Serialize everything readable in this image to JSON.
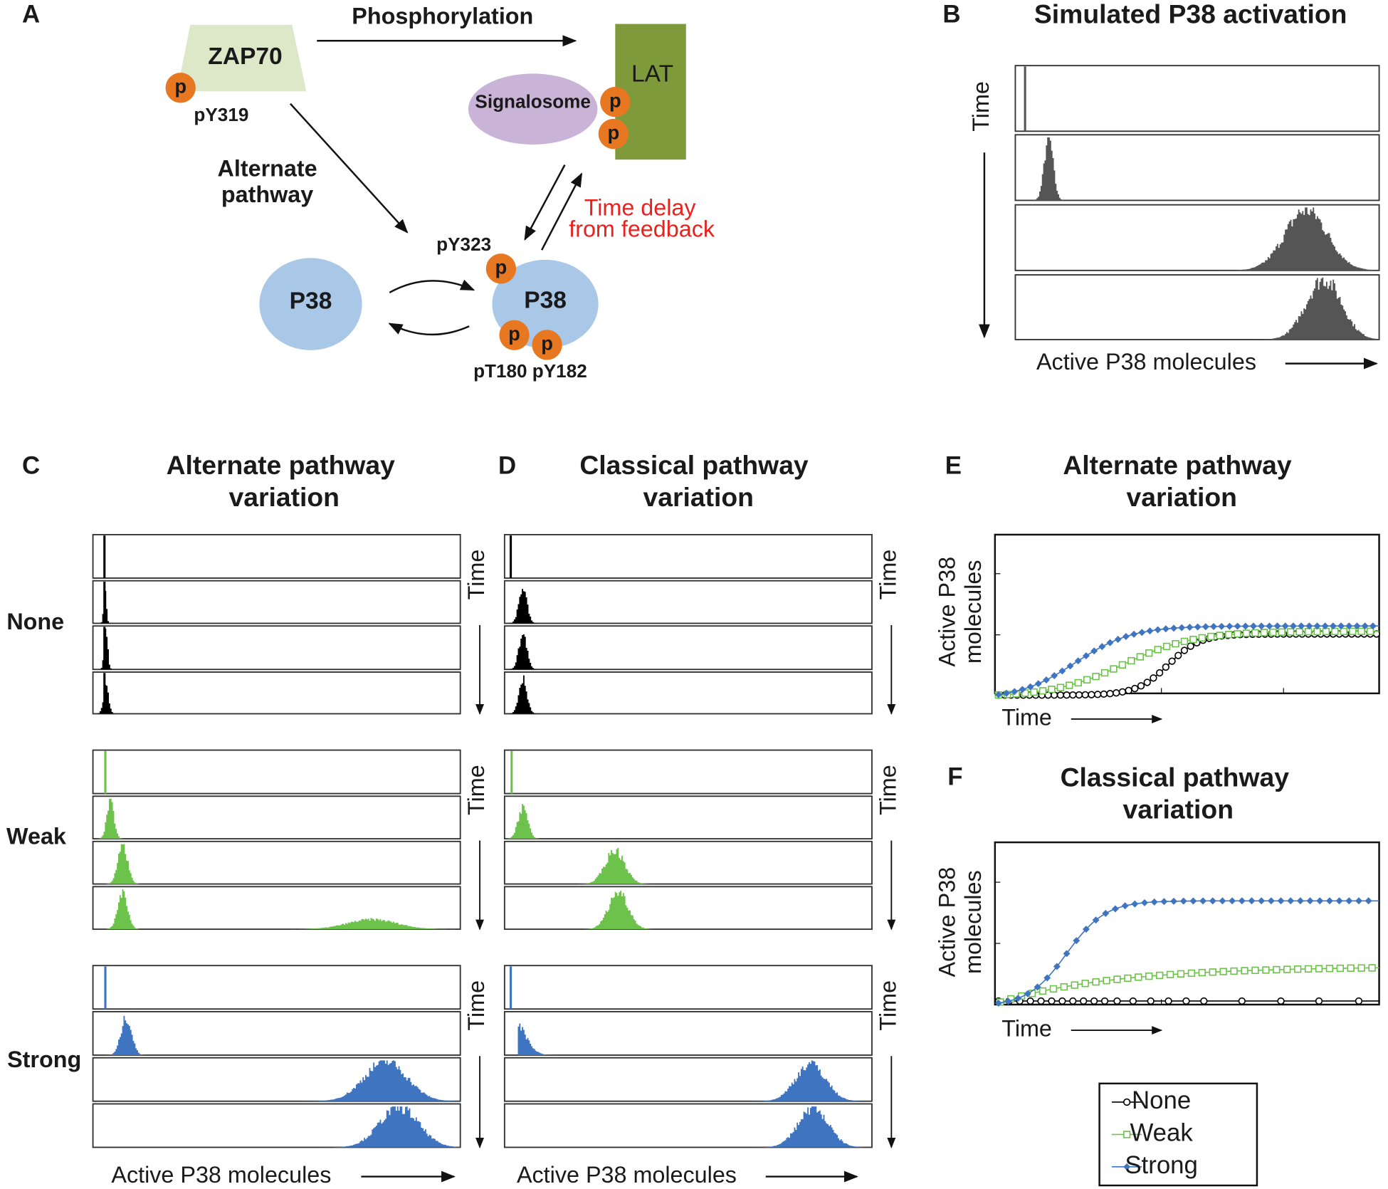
{
  "panel_a": {
    "label": "A",
    "phosphorylation": "Phosphorylation",
    "zap70": "ZAP70",
    "zap_p": "p",
    "py319": "pY319",
    "alternate": [
      "Alternate",
      "pathway"
    ],
    "lat": "LAT",
    "signalosome": "Signalosome",
    "lat_p": [
      "p",
      "p"
    ],
    "time_delay": [
      "Time delay",
      "from feedback"
    ],
    "py323": "pY323",
    "p38_inactive": "P38",
    "p38_active": "P38",
    "p38_p": [
      "p",
      "p",
      "p"
    ],
    "sites": "pT180 pY182"
  },
  "panel_b": {
    "label": "B",
    "title": "Simulated P38 activation",
    "y_label": "Time",
    "x_label": "Active P38 molecules"
  },
  "panel_c": {
    "label": "C",
    "title": [
      "Alternate pathway",
      "variation"
    ],
    "rows": [
      "None",
      "Weak",
      "Strong"
    ],
    "time_labels": [
      "Time",
      "Time",
      "Time"
    ],
    "x_label": "Active P38 molecules"
  },
  "panel_d": {
    "label": "D",
    "title": [
      "Classical pathway",
      "variation"
    ],
    "time_labels": [
      "Time",
      "Time",
      "Time"
    ],
    "x_label": "Active P38 molecules"
  },
  "panel_e": {
    "label": "E",
    "title": [
      "Alternate pathway",
      "variation"
    ],
    "y_label": [
      "Active P38",
      "molecules"
    ],
    "x_label": "Time"
  },
  "panel_f": {
    "label": "F",
    "title": [
      "Classical pathway",
      "variation"
    ],
    "y_label": [
      "Active P38",
      "molecules"
    ],
    "x_label": "Time"
  },
  "legend": {
    "entries": [
      {
        "name": "None",
        "color": "#000000"
      },
      {
        "name": "Weak",
        "color": "#6cc24a"
      },
      {
        "name": "Strong",
        "color": "#3f74c0"
      }
    ]
  }
}
